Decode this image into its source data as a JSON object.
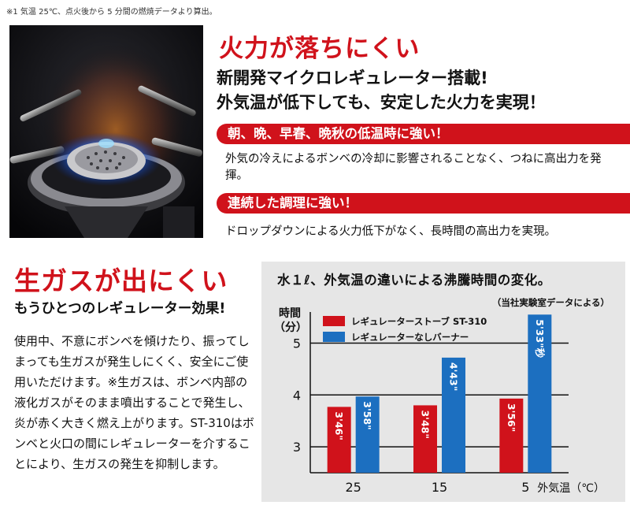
{
  "footnote": "※1 気温 25℃、点火後から 5 分間の燃焼データより算出。",
  "section1": {
    "title": "火力が落ちにくい",
    "subtitle_line1": "新開発マイクロレギュレーター搭載!",
    "subtitle_line2": "外気温が低下しても、安定した火力を実現！",
    "ribbon1": "朝、晩、早春、晩秋の低温時に強い！",
    "text1": "外気の冷えによるボンベの冷却に影響されることなく、つねに高出力を発揮。",
    "ribbon2": "連続した調理に強い！",
    "text2": "ドロップダウンによる火力低下がなく、長時間の高出力を実現。"
  },
  "section2": {
    "title": "生ガスが出にくい",
    "subtitle": "もうひとつのレギュレーター効果!",
    "body": "使用中、不意にボンベを傾けたり、振ってしまっても生ガスが発生しにくく、安全にご使用いただけます。※生ガスは、ボンベ内部の液化ガスがそのまま噴出することで発生し、炎が赤く大きく燃え上がります。ST-310はボンベと火口の間にレギュレーターを介することにより、生ガスの発生を抑制します。"
  },
  "colors": {
    "red": "#d0121b",
    "blue": "#1c6fc0",
    "panel": "#e6e6e6"
  },
  "chart_data": {
    "type": "bar",
    "title": "水１ℓ、外気温の違いによる沸騰時間の変化。",
    "source": "（当社実験室データによる）",
    "ylabel_line1": "時間",
    "ylabel_line2": "（分）",
    "xlabel": "外気温（℃）",
    "categories": [
      "25",
      "15",
      "5"
    ],
    "yticks": [
      "3",
      "4",
      "5"
    ],
    "ylim": [
      2.5,
      5.6
    ],
    "grid": true,
    "legend_position": "top-left",
    "series": [
      {
        "name": "レギュレーターストーブ ST-310",
        "color": "#d0121b",
        "values": [
          3.77,
          3.8,
          3.93
        ],
        "labels": [
          "3'46\"",
          "3'48\"",
          "3'56\""
        ]
      },
      {
        "name": "レギュレーターなしバーナー",
        "color": "#1c6fc0",
        "values": [
          3.97,
          4.72,
          5.55
        ],
        "labels": [
          "3'58\"",
          "4'43\"",
          "5'33\"秒"
        ]
      }
    ]
  }
}
